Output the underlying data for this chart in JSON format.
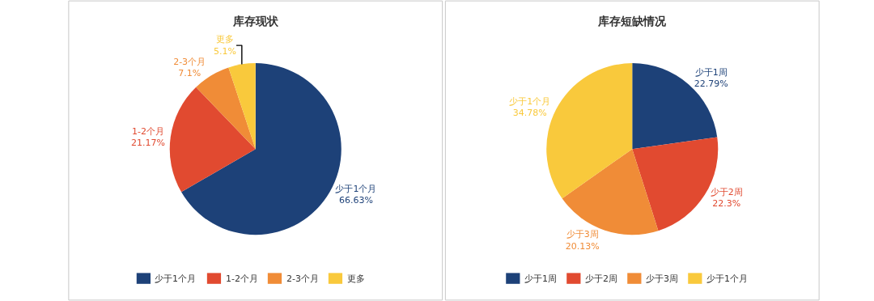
{
  "chart_data": [
    {
      "type": "pie",
      "title": "库存现状",
      "categories": [
        "少于1个月",
        "1-2个月",
        "2-3个月",
        "更多"
      ],
      "values": [
        66.63,
        21.17,
        7.1,
        5.1
      ],
      "value_labels": [
        "66.63%",
        "21.17%",
        "7.1%",
        "5.1%"
      ],
      "colors": [
        "#1d4178",
        "#e14a30",
        "#f08c37",
        "#f9c93c"
      ],
      "legend": "bottom"
    },
    {
      "type": "pie",
      "title": "库存短缺情况",
      "categories": [
        "少于1周",
        "少于2周",
        "少于3周",
        "少于1个月"
      ],
      "values": [
        22.79,
        22.3,
        20.13,
        34.78
      ],
      "value_labels": [
        "22.79%",
        "22.3%",
        "20.13%",
        "34.78%"
      ],
      "colors": [
        "#1d4178",
        "#e14a30",
        "#f08c37",
        "#f9c93c"
      ],
      "legend": "bottom"
    }
  ]
}
